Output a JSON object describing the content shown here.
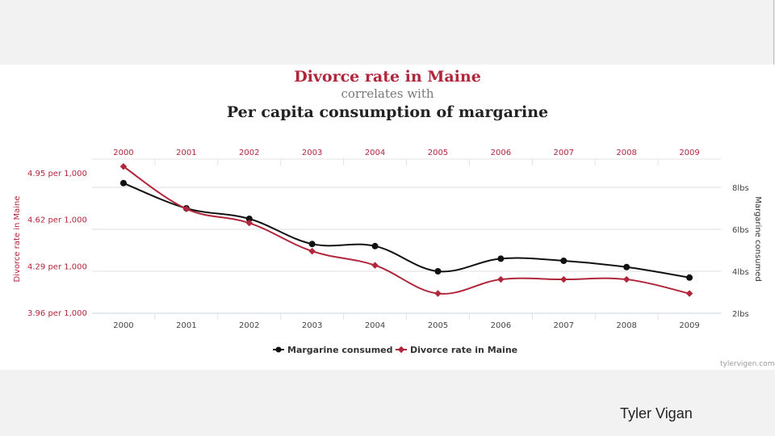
{
  "chart_data": {
    "type": "line",
    "title": "Divorce rate in Maine",
    "subtitle": "correlates with",
    "title2": "Per capita consumption of margarine",
    "x": [
      "2000",
      "2001",
      "2002",
      "2003",
      "2004",
      "2005",
      "2006",
      "2007",
      "2008",
      "2009"
    ],
    "series": [
      {
        "name": "Margarine consumed",
        "axis": "right",
        "color": "#111111",
        "values": [
          8.2,
          7.0,
          6.5,
          5.3,
          5.2,
          4.0,
          4.6,
          4.5,
          4.2,
          3.7
        ]
      },
      {
        "name": "Divorce rate in Maine",
        "axis": "left",
        "color": "#b0263b",
        "values": [
          5.0,
          4.7,
          4.6,
          4.4,
          4.3,
          4.1,
          4.2,
          4.2,
          4.2,
          4.1
        ]
      }
    ],
    "left_axis": {
      "label": "Divorce rate in Maine",
      "range": [
        3.96,
        4.95
      ],
      "ticks": [
        {
          "value": 4.95,
          "label": "4.95 per 1,000"
        },
        {
          "value": 4.62,
          "label": "4.62 per 1,000"
        },
        {
          "value": 4.29,
          "label": "4.29 per 1,000"
        },
        {
          "value": 3.96,
          "label": "3.96 per 1,000"
        }
      ]
    },
    "right_axis": {
      "label": "Margarine consumed",
      "range": [
        2,
        8
      ],
      "ticks": [
        {
          "value": 8,
          "label": "8lbs"
        },
        {
          "value": 6,
          "label": "6lbs"
        },
        {
          "value": 4,
          "label": "4lbs"
        },
        {
          "value": 2,
          "label": "2lbs"
        }
      ]
    },
    "grid": true,
    "legend_position": "bottom"
  },
  "credit": "tylervigen.com",
  "author": "Tyler Vigan",
  "colors": {
    "divorce": "#b0263b",
    "margarine": "#111111",
    "axis_text": "#999999",
    "grid": "#dddddd"
  }
}
